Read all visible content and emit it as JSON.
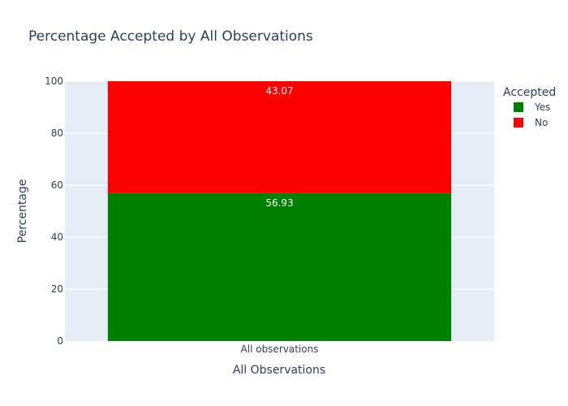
{
  "chart_data": {
    "type": "bar",
    "stacked": true,
    "title": "Percentage Accepted by All Observations",
    "xlabel": "All Observations",
    "ylabel": "Percentage",
    "categories": [
      "All observations"
    ],
    "ylim": [
      0,
      100
    ],
    "yticks": [
      0,
      20,
      40,
      60,
      80,
      100
    ],
    "series": [
      {
        "name": "Yes",
        "values": [
          56.93
        ],
        "color": "#008000",
        "label": "56.93"
      },
      {
        "name": "No",
        "values": [
          43.07
        ],
        "color": "#ff0000",
        "label": "43.07"
      }
    ],
    "legend": {
      "title": "Accepted",
      "position": "top-right"
    },
    "grid": true
  },
  "colors": {
    "plot_bg": "#e5ecf6",
    "grid": "#ffffff",
    "text": "#2a3f5f"
  }
}
